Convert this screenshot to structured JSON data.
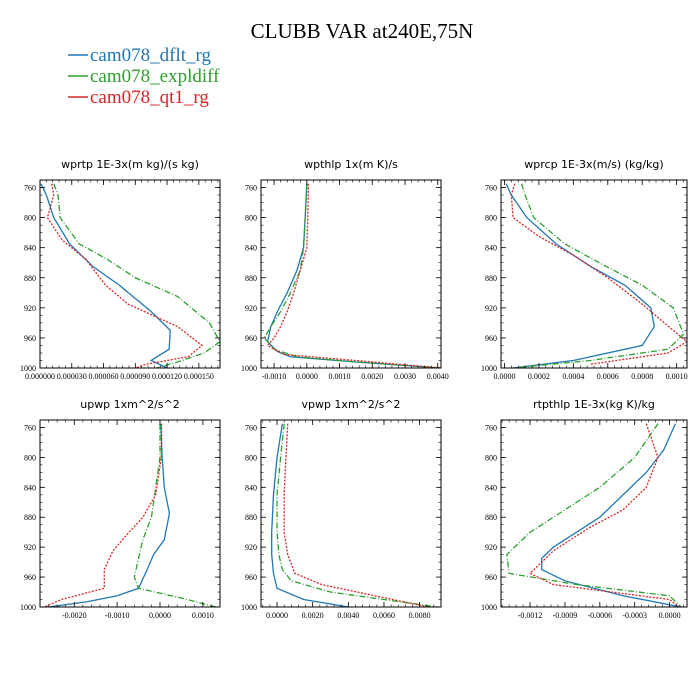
{
  "title": "CLUBB VAR at240E,75N",
  "legend": [
    {
      "label": "cam078_dflt_rg",
      "color": "#1f77b4"
    },
    {
      "label": "cam078_expldiff",
      "color": "#2ca02c"
    },
    {
      "label": "cam078_qt1_rg",
      "color": "#d62728"
    }
  ],
  "chart_data": [
    {
      "type": "line",
      "title": "wprtp  1E-3x(m kg)/(s kg)",
      "xlim": [
        0,
        0.00017
      ],
      "ylim": [
        1000,
        750
      ],
      "xticks": [
        0,
        3e-05,
        6e-05,
        9e-05,
        0.00012,
        0.00015
      ],
      "xticklabels": [
        "0.000000",
        "0.000030",
        "0.000060",
        "0.000090",
        "0.000120",
        "0.000150"
      ],
      "yticks": [
        760,
        800,
        840,
        880,
        920,
        960,
        1000
      ],
      "series": [
        {
          "name": "cam078_dflt_rg",
          "x": [
            1e-06,
            6e-06,
            1.3e-05,
            2.8e-05,
            5e-05,
            7.5e-05,
            0.000105,
            0.000123,
            0.000122,
            0.000105,
            0.00012
          ],
          "y": [
            755,
            770,
            800,
            835,
            865,
            890,
            925,
            950,
            975,
            990,
            1000
          ]
        },
        {
          "name": "cam078_expldiff",
          "x": [
            1.3e-05,
            1.7e-05,
            1.9e-05,
            3.7e-05,
            6.3e-05,
            9e-05,
            0.00013,
            0.00016,
            0.00017,
            0.000155,
            0.00013,
            0.00011
          ],
          "y": [
            755,
            770,
            800,
            835,
            855,
            880,
            905,
            940,
            965,
            980,
            992,
            1000
          ]
        },
        {
          "name": "cam078_qt1_rg",
          "x": [
            1.1e-05,
            1.3e-05,
            7e-06,
            2.1e-05,
            4.3e-05,
            6.2e-05,
            8.3e-05,
            0.00013,
            0.000153,
            0.00014,
            0.0001,
            9e-05
          ],
          "y": [
            755,
            770,
            800,
            830,
            855,
            890,
            915,
            945,
            970,
            985,
            995,
            1000
          ]
        }
      ]
    },
    {
      "type": "line",
      "title": "wpthlp  1x(m K)/s",
      "xlim": [
        -0.0014,
        0.0041
      ],
      "ylim": [
        1000,
        750
      ],
      "xticks": [
        -0.001,
        0,
        0.001,
        0.002,
        0.003,
        0.004
      ],
      "xticklabels": [
        "-0.0010",
        "0.0000",
        "0.0010",
        "0.0020",
        "0.0030",
        "0.0040"
      ],
      "yticks": [
        760,
        800,
        840,
        880,
        920,
        960,
        1000
      ],
      "series": [
        {
          "name": "cam078_dflt_rg",
          "x": [
            0.0,
            -5e-05,
            -0.0001,
            -0.0003,
            -0.0006,
            -0.0009,
            -0.0011,
            -0.0012,
            -0.0009,
            -0.0005,
            0.0015,
            0.0041
          ],
          "y": [
            755,
            800,
            840,
            870,
            900,
            925,
            945,
            965,
            978,
            985,
            992,
            1000
          ]
        },
        {
          "name": "cam078_expldiff",
          "x": [
            0.0,
            -5e-05,
            -0.0001,
            -0.0002,
            -0.0005,
            -0.0008,
            -0.0011,
            -0.0013,
            -0.001,
            -0.0003,
            0.0015,
            0.0041
          ],
          "y": [
            755,
            800,
            840,
            870,
            900,
            925,
            945,
            960,
            975,
            985,
            992,
            1000
          ]
        },
        {
          "name": "cam078_qt1_rg",
          "x": [
            5e-05,
            3e-05,
            0.0,
            -0.0002,
            -0.0004,
            -0.0006,
            -0.0008,
            -0.001,
            -0.0012,
            -0.0007,
            0.0015,
            0.0041
          ],
          "y": [
            755,
            800,
            840,
            870,
            900,
            925,
            945,
            960,
            970,
            982,
            990,
            1000
          ]
        }
      ]
    },
    {
      "type": "line",
      "title": "wprcp  1E-3x(m/s) (kg/kg)",
      "xlim": [
        -2e-05,
        0.00106
      ],
      "ylim": [
        1000,
        750
      ],
      "xticks": [
        0,
        0.0002,
        0.0004,
        0.0006,
        0.0008,
        0.001
      ],
      "xticklabels": [
        "0.0000",
        "0.0002",
        "0.0004",
        "0.0006",
        "0.0008",
        "0.0010"
      ],
      "yticks": [
        760,
        800,
        840,
        880,
        920,
        960,
        1000
      ],
      "series": [
        {
          "name": "cam078_dflt_rg",
          "x": [
            1e-05,
            4e-05,
            0.00013,
            0.0003,
            0.0005,
            0.0007,
            0.00085,
            0.00087,
            0.0008,
            0.0004,
            5e-05
          ],
          "y": [
            755,
            770,
            800,
            835,
            865,
            890,
            920,
            945,
            970,
            990,
            1000
          ]
        },
        {
          "name": "cam078_expldiff",
          "x": [
            0.0001,
            0.00012,
            0.00017,
            0.00035,
            0.00055,
            0.0008,
            0.00098,
            0.00104,
            0.00095,
            0.0005,
            5e-05
          ],
          "y": [
            755,
            770,
            800,
            835,
            860,
            890,
            920,
            955,
            975,
            990,
            1000
          ]
        },
        {
          "name": "cam078_qt1_rg",
          "x": [
            6e-05,
            4e-05,
            5e-05,
            0.0002,
            0.0004,
            0.0006,
            0.0008,
            0.00098,
            0.00106,
            0.00095,
            0.0005
          ],
          "y": [
            755,
            770,
            800,
            825,
            850,
            880,
            915,
            950,
            965,
            980,
            995
          ]
        }
      ]
    },
    {
      "type": "line",
      "title": "upwp  1xm^2/s^2",
      "xlim": [
        -0.0028,
        0.0014
      ],
      "ylim": [
        1000,
        750
      ],
      "xticks": [
        -0.002,
        -0.001,
        0,
        0.001
      ],
      "xticklabels": [
        "-0.0020",
        "-0.0010",
        "0.0000",
        "0.0010"
      ],
      "yticks": [
        760,
        800,
        840,
        880,
        920,
        960,
        1000
      ],
      "series": [
        {
          "name": "cam078_dflt_rg",
          "x": [
            2e-05,
            5e-05,
            0.0001,
            0.00022,
            0.0001,
            -0.00015,
            -0.0003,
            -0.0005,
            -0.001,
            -0.0017,
            -0.0026
          ],
          "y": [
            755,
            800,
            840,
            875,
            910,
            930,
            950,
            975,
            985,
            993,
            1000
          ]
        },
        {
          "name": "cam078_expldiff",
          "x": [
            0.0,
            0.0,
            -0.0001,
            -0.0002,
            -0.0004,
            -0.0005,
            -0.0006,
            -0.0005,
            0.0005,
            0.0013
          ],
          "y": [
            755,
            800,
            840,
            880,
            910,
            935,
            960,
            975,
            988,
            1000
          ]
        },
        {
          "name": "cam078_qt1_rg",
          "x": [
            4e-05,
            3e-05,
            -0.0001,
            -0.0004,
            -0.0008,
            -0.0011,
            -0.0013,
            -0.0013,
            -0.0023,
            -0.0027
          ],
          "y": [
            755,
            800,
            850,
            880,
            905,
            925,
            950,
            975,
            990,
            1000
          ]
        }
      ]
    },
    {
      "type": "line",
      "title": "vpwp  1xm^2/s^2",
      "xlim": [
        -0.0009,
        0.0092
      ],
      "ylim": [
        1000,
        750
      ],
      "xticks": [
        0,
        0.002,
        0.004,
        0.006,
        0.008
      ],
      "xticklabels": [
        "0.0000",
        "0.0020",
        "0.0040",
        "0.0060",
        "0.0080"
      ],
      "yticks": [
        760,
        800,
        840,
        880,
        920,
        960,
        1000
      ],
      "series": [
        {
          "name": "cam078_dflt_rg",
          "x": [
            0.0003,
            0.0,
            -0.0002,
            -0.0003,
            -0.0003,
            -0.0002,
            0.0,
            0.0015,
            0.004
          ],
          "y": [
            755,
            800,
            850,
            900,
            930,
            955,
            975,
            990,
            1000
          ]
        },
        {
          "name": "cam078_expldiff",
          "x": [
            0.0004,
            0.0002,
            0.0,
            0.0,
            0.0001,
            0.0003,
            0.0008,
            0.003,
            0.006,
            0.009
          ],
          "y": [
            755,
            800,
            850,
            900,
            930,
            950,
            965,
            980,
            990,
            1000
          ]
        },
        {
          "name": "cam078_qt1_rg",
          "x": [
            0.0006,
            0.0005,
            0.0004,
            0.0004,
            0.0006,
            0.001,
            0.0025,
            0.0055,
            0.0085
          ],
          "y": [
            755,
            800,
            850,
            900,
            930,
            955,
            970,
            985,
            1000
          ]
        }
      ]
    },
    {
      "type": "line",
      "title": "rtpthlp  1E-3x(kg K)/kg",
      "xlim": [
        -0.00145,
        0.00015
      ],
      "ylim": [
        1000,
        750
      ],
      "xticks": [
        -0.0012,
        -0.0009,
        -0.0006,
        -0.0003,
        0
      ],
      "xticklabels": [
        "-0.0012",
        "-0.0009",
        "-0.0006",
        "-0.0003",
        "0.0000"
      ],
      "yticks": [
        760,
        800,
        840,
        880,
        920,
        960,
        1000
      ],
      "series": [
        {
          "name": "cam078_dflt_rg",
          "x": [
            5e-05,
            -5e-05,
            -0.0002,
            -0.0004,
            -0.0006,
            -0.0008,
            -0.001,
            -0.0011,
            -0.0011,
            -0.0009,
            -0.0004,
            0.0001
          ],
          "y": [
            755,
            790,
            820,
            850,
            880,
            900,
            920,
            935,
            950,
            965,
            985,
            1000
          ]
        },
        {
          "name": "cam078_expldiff",
          "x": [
            -0.0001,
            -0.0003,
            -0.0006,
            -0.0009,
            -0.0012,
            -0.0014,
            -0.00138,
            -0.0008,
            0.0,
            0.0001
          ],
          "y": [
            755,
            800,
            840,
            870,
            900,
            930,
            955,
            970,
            985,
            1000
          ]
        },
        {
          "name": "cam078_qt1_rg",
          "x": [
            -0.0002,
            -0.0001,
            -0.0002,
            -0.0004,
            -0.0007,
            -0.001,
            -0.0012,
            -0.001,
            0.0,
            8e-05
          ],
          "y": [
            755,
            800,
            840,
            870,
            895,
            925,
            955,
            970,
            990,
            1000
          ]
        }
      ]
    }
  ]
}
